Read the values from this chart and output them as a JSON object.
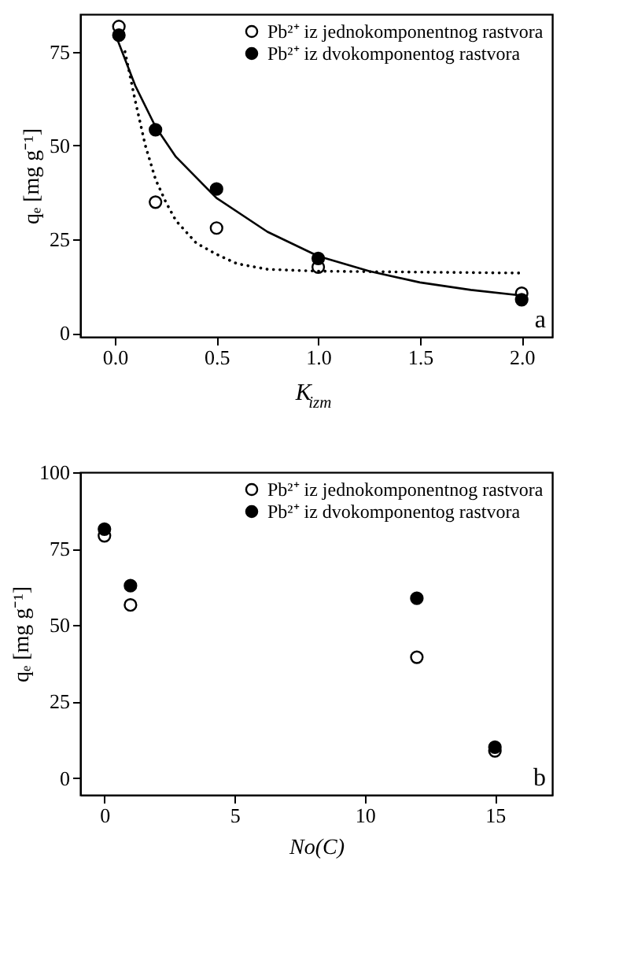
{
  "chart_data": [
    {
      "type": "scatter",
      "xlabel": "K$_{izm}$",
      "ylabel": "qₑ [mg g⁻¹]",
      "annotations": [
        "a"
      ],
      "xlim": [
        -0.17,
        2.15
      ],
      "ylim": [
        -1,
        85
      ],
      "xticks": [
        {
          "value": 0,
          "label": "0.0"
        },
        0.5,
        {
          "value": 1,
          "label": "1.0"
        },
        1.5,
        {
          "value": 2,
          "label": "2.0"
        }
      ],
      "yticks": [
        0,
        25,
        50,
        75
      ],
      "grid": false,
      "legend": "top right",
      "marker": "circle",
      "series": [
        {
          "name": "Pb²⁺ iz jednokomponentnog rastvora",
          "color": "#000000",
          "x": [
            0.02,
            0.2,
            0.5,
            1.0,
            2.0
          ],
          "values": [
            81.7,
            34.9,
            28,
            17.6,
            10.6
          ]
        },
        {
          "name": "Pb²⁺ iz dvokomponentog rastvora",
          "color": "#000000",
          "x": [
            0.02,
            0.2,
            0.5,
            1.0,
            2.0
          ],
          "values": [
            79.4,
            54.2,
            38.4,
            19.9,
            8.9
          ]
        },
        {
          "type": "line",
          "color": "#000000",
          "line_style": "solid",
          "marker": "none",
          "x": [
            0.0,
            0.1,
            0.2,
            0.3,
            0.5,
            0.75,
            1.0,
            1.25,
            1.5,
            1.75,
            2.0
          ],
          "values": [
            80,
            66,
            55,
            47,
            36,
            27,
            20.5,
            16.5,
            13.5,
            11.5,
            10
          ]
        },
        {
          "type": "line",
          "color": "#000000",
          "line_style": "dotted",
          "marker": "none",
          "x": [
            0.05,
            0.1,
            0.15,
            0.2,
            0.25,
            0.3,
            0.4,
            0.5,
            0.6,
            0.75,
            1.0,
            2.0
          ],
          "values": [
            75,
            62,
            50,
            41,
            35,
            30,
            24,
            21,
            18.5,
            17,
            16.5,
            16
          ]
        }
      ]
    },
    {
      "type": "scatter",
      "xlabel": "No(C)",
      "ylabel": "qₑ [mg g⁻¹]",
      "annotations": [
        "b"
      ],
      "xlim": [
        -0.93,
        17.2
      ],
      "ylim": [
        -5.5,
        100
      ],
      "xticks": [
        0,
        5,
        10,
        15
      ],
      "yticks": [
        0,
        25,
        50,
        75,
        100
      ],
      "grid": false,
      "legend": "top right",
      "marker": "circle",
      "series": [
        {
          "name": "Pb²⁺ iz jednokomponentnog rastvora",
          "color": "#000000",
          "x": [
            0,
            1,
            12,
            15
          ],
          "values": [
            79.2,
            56.6,
            39.5,
            8.9
          ]
        },
        {
          "name": "Pb²⁺ iz dvokomponentog rastvora",
          "color": "#000000",
          "x": [
            0,
            1,
            12,
            15
          ],
          "values": [
            81.4,
            62.9,
            58.8,
            10.1
          ]
        }
      ]
    }
  ]
}
